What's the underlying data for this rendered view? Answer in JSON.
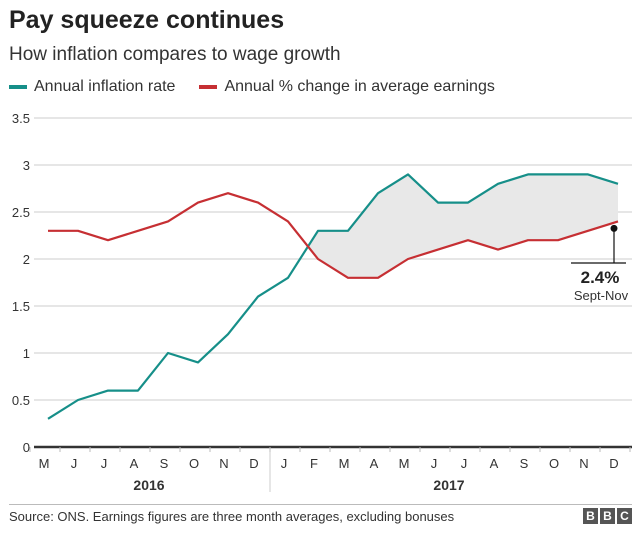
{
  "title": "Pay squeeze continues",
  "subtitle": "How inflation compares to wage growth",
  "colors": {
    "inflation": "#168f89",
    "earnings": "#c62f33",
    "shade": "#e8e8e8",
    "grid": "#dddddd"
  },
  "chart_data": {
    "type": "line",
    "x": [
      "M",
      "J",
      "J",
      "A",
      "S",
      "O",
      "N",
      "D",
      "J",
      "F",
      "M",
      "A",
      "M",
      "J",
      "J",
      "A",
      "S",
      "O",
      "N",
      "D"
    ],
    "year_groups": [
      {
        "label": "2016",
        "count": 8
      },
      {
        "label": "2017",
        "count": 12
      }
    ],
    "yticks": [
      "0",
      "0.5",
      "1",
      "1.5",
      "2",
      "2.5",
      "3",
      "3.5"
    ],
    "ylim": [
      0,
      3.5
    ],
    "grid": true,
    "legend_position": "top-left",
    "series": [
      {
        "name": "Annual inflation rate",
        "color": "#168f89",
        "values": [
          0.3,
          0.5,
          0.6,
          0.6,
          1.0,
          0.9,
          1.2,
          1.6,
          1.8,
          2.3,
          2.3,
          2.7,
          2.9,
          2.6,
          2.6,
          2.8,
          2.9,
          2.9,
          2.9,
          2.8
        ]
      },
      {
        "name": "Annual % change in average earnings",
        "color": "#c62f33",
        "values": [
          2.3,
          2.3,
          2.2,
          2.3,
          2.4,
          2.6,
          2.7,
          2.6,
          2.4,
          2.0,
          1.8,
          1.8,
          2.0,
          2.1,
          2.2,
          2.1,
          2.2,
          2.2,
          2.3,
          2.4
        ]
      }
    ],
    "shading": "gap between inflation and earnings where inflation exceeds earnings",
    "annotation": {
      "value": "2.4%",
      "label": "Sept-Nov",
      "series": 1,
      "index": 19
    }
  },
  "footer": {
    "source": "Source: ONS. Earnings figures are three month averages, excluding bonuses",
    "logo": [
      "B",
      "B",
      "C"
    ]
  }
}
